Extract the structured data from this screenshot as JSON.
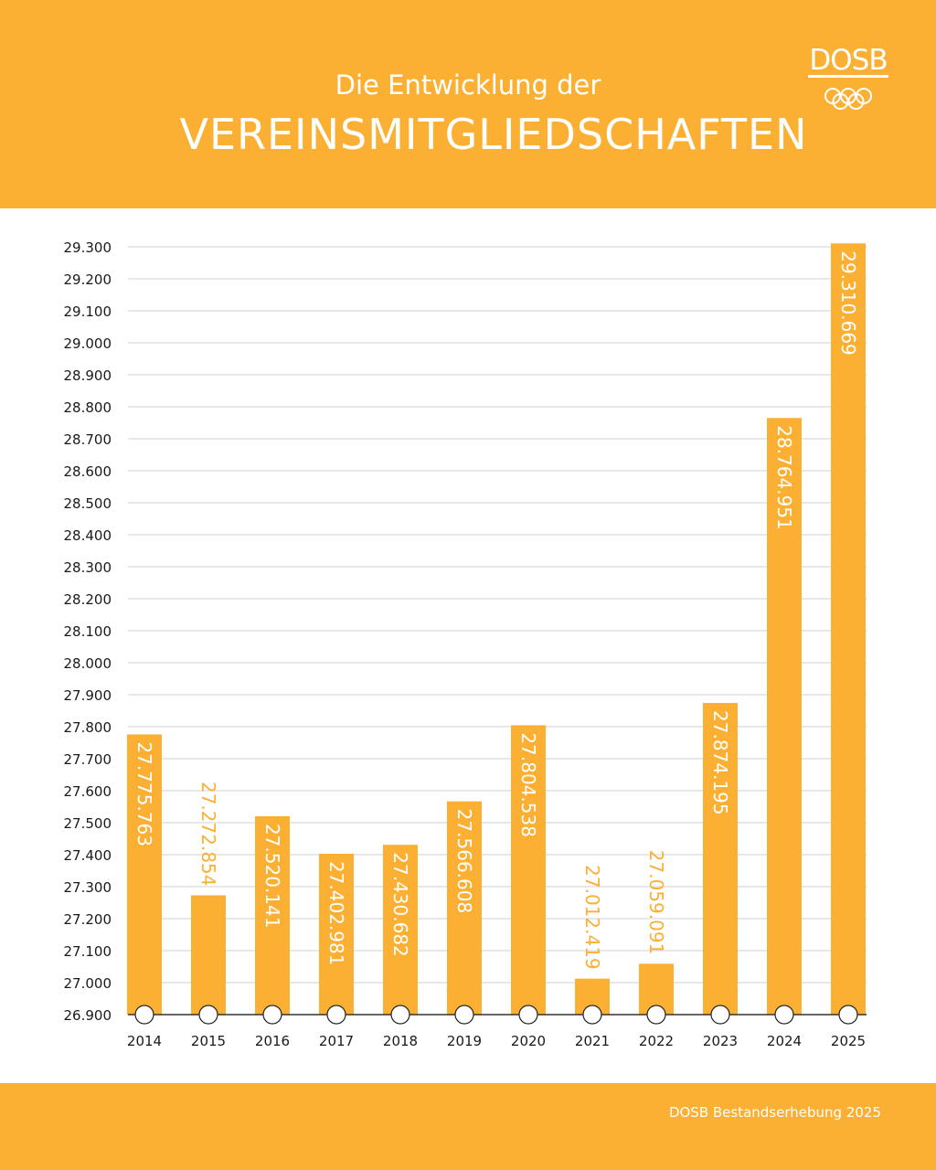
{
  "header": {
    "subtitle": "Die Entwicklung der",
    "title": "VEREINSMITGLIEDSCHAFTEN",
    "logo_text": "DOSB"
  },
  "footer": {
    "source": "DOSB Bestandserhebung 2025"
  },
  "colors": {
    "brand": "#FBB034",
    "text": "#1a1a1a",
    "grid": "#d0d0d0"
  },
  "chart_data": {
    "type": "bar",
    "title": "Die Entwicklung der VEREINSMITGLIEDSCHAFTEN",
    "categories": [
      "2014",
      "2015",
      "2016",
      "2017",
      "2018",
      "2019",
      "2020",
      "2021",
      "2022",
      "2023",
      "2024",
      "2025"
    ],
    "values": [
      27775763,
      27272854,
      27520141,
      27402981,
      27430682,
      27566608,
      27804538,
      27012419,
      27059091,
      27874195,
      28764951,
      29310669
    ],
    "data_labels": [
      "27.775.763",
      "27.272.854",
      "27.520.141",
      "27.402.981",
      "27.430.682",
      "27.566.608",
      "27.804.538",
      "27.012.419",
      "27.059.091",
      "27.874.195",
      "28.764.951",
      "29.310.669"
    ],
    "ylim": [
      26900,
      29300
    ],
    "y_unit": "thousands",
    "yticks": [
      "26.900",
      "27.000",
      "27.100",
      "27.200",
      "27.300",
      "27.400",
      "27.500",
      "27.600",
      "27.700",
      "27.800",
      "27.900",
      "28.000",
      "28.100",
      "28.200",
      "28.300",
      "28.400",
      "28.500",
      "28.600",
      "28.700",
      "28.800",
      "28.900",
      "29.000",
      "29.100",
      "29.200",
      "29.300"
    ],
    "grid": true,
    "xlabel": "",
    "ylabel": ""
  }
}
